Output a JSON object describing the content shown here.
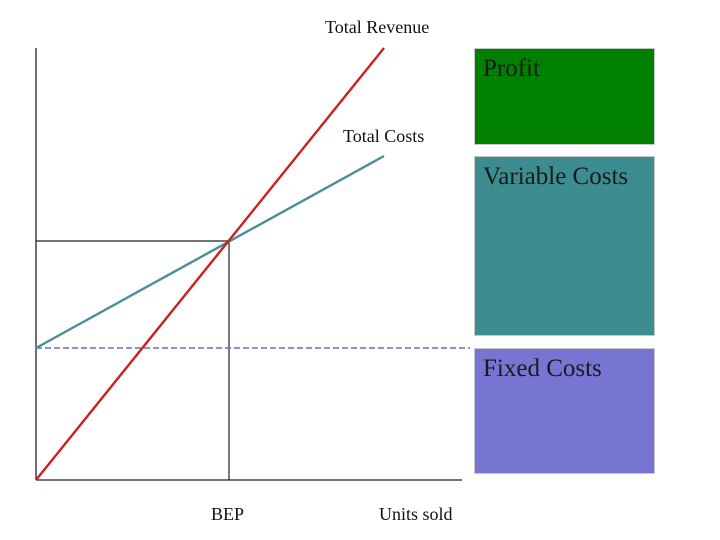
{
  "labels": {
    "total_revenue": "Total Revenue",
    "total_costs": "Total Costs",
    "bep": "BEP",
    "units_sold": "Units sold"
  },
  "legend": {
    "profit": "Profit",
    "variable_costs": "Variable Costs",
    "fixed_costs": "Fixed Costs"
  },
  "colors": {
    "revenue_line": "#cc1f1f",
    "cost_line": "#4a8f98",
    "fixed_cost_line": "#6a6ac8",
    "profit_box": "#008000",
    "variable_box": "#3d8c90",
    "fixed_box": "#7676d2",
    "axis": "#222222"
  }
}
